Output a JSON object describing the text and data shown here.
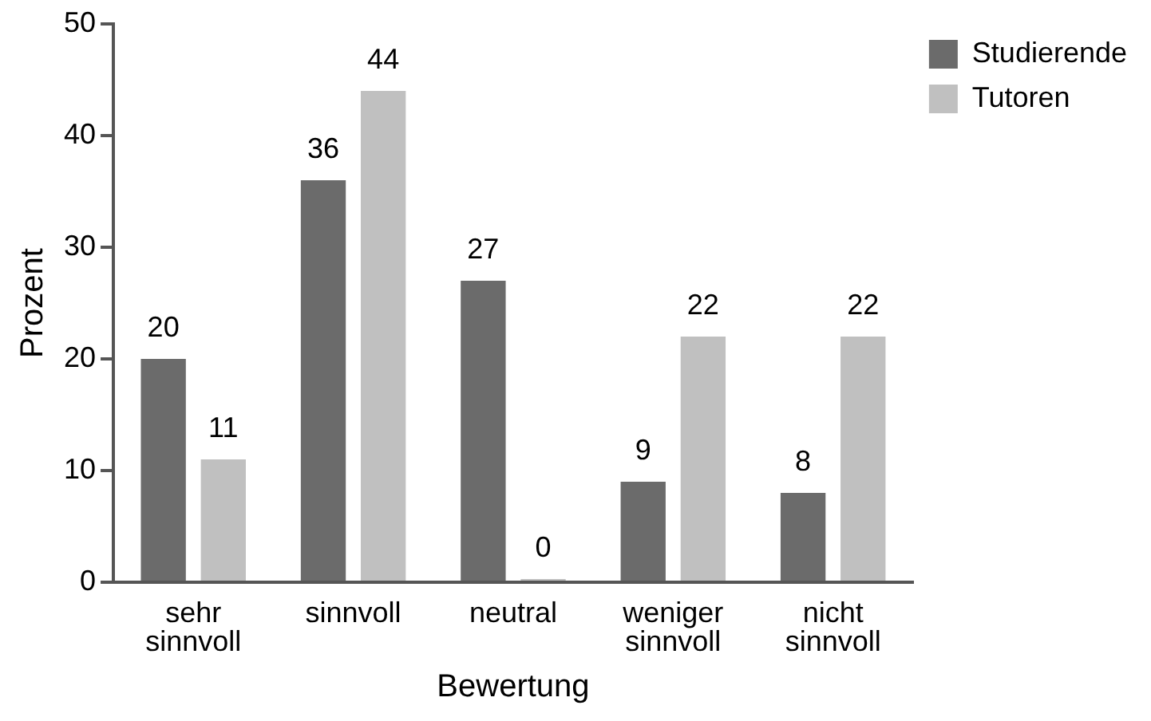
{
  "chart_data": {
    "type": "bar",
    "xlabel": "Bewertung",
    "ylabel": "Prozent",
    "categories": [
      "sehr sinnvoll",
      "sinnvoll",
      "neutral",
      "weniger sinnvoll",
      "nicht sinnvoll"
    ],
    "series": [
      {
        "name": "Studierende",
        "color": "#6b6b6b",
        "values": [
          20,
          36,
          27,
          9,
          8
        ]
      },
      {
        "name": "Tutoren",
        "color": "#c0c0c0",
        "values": [
          11,
          44,
          0,
          22,
          22
        ]
      }
    ],
    "ylim": [
      0,
      50
    ],
    "yticks": [
      0,
      10,
      20,
      30,
      40,
      50
    ],
    "grid": false,
    "legend": "top right",
    "data_labels": true
  }
}
